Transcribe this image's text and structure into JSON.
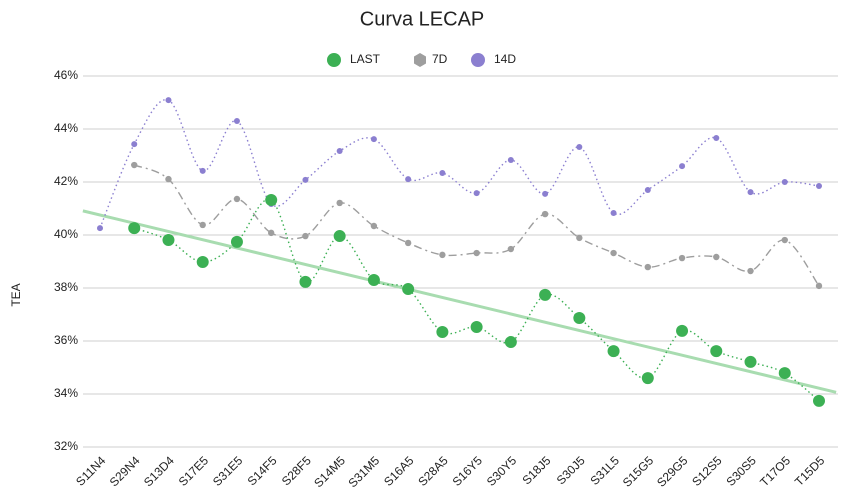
{
  "chart_data": {
    "type": "line",
    "title": "Curva LECAP",
    "ylabel": "TEA",
    "categories": [
      "S11N4",
      "S29N4",
      "S13D4",
      "S17E5",
      "S31E5",
      "S14F5",
      "S28F5",
      "S14M5",
      "S31M5",
      "S16A5",
      "S28A5",
      "S16Y5",
      "S30Y5",
      "S18J5",
      "S30J5",
      "S31L5",
      "S15G5",
      "S29G5",
      "S12S5",
      "S30S5",
      "T17O5",
      "T15D5"
    ],
    "series": [
      {
        "name": "LAST",
        "color": "#3cb054",
        "values": [
          null,
          40.26,
          39.81,
          38.98,
          39.74,
          41.32,
          38.23,
          39.96,
          38.3,
          37.96,
          36.34,
          36.53,
          35.96,
          37.74,
          36.87,
          35.62,
          34.6,
          36.38,
          35.62,
          35.21,
          34.79,
          33.74
        ]
      },
      {
        "name": "7D",
        "color": "#9e9e9e",
        "values": [
          null,
          42.64,
          42.11,
          40.38,
          41.36,
          40.08,
          39.96,
          41.21,
          40.34,
          39.7,
          39.25,
          39.32,
          39.47,
          40.79,
          39.89,
          39.32,
          38.79,
          39.13,
          39.17,
          38.64,
          39.81,
          38.08
        ]
      },
      {
        "name": "14D",
        "color": "#8b7fd0",
        "values": [
          40.26,
          43.43,
          45.09,
          42.42,
          44.3,
          41.17,
          42.08,
          43.17,
          43.62,
          42.11,
          42.34,
          41.58,
          42.83,
          41.55,
          43.32,
          40.83,
          41.7,
          42.6,
          43.66,
          41.62,
          42.0,
          41.85
        ]
      }
    ],
    "ylim": [
      32,
      46
    ],
    "yticks": [
      {
        "value": 32,
        "label": "32%"
      },
      {
        "value": 34,
        "label": "34%"
      },
      {
        "value": 36,
        "label": "36%"
      },
      {
        "value": 38,
        "label": "38%"
      },
      {
        "value": 40,
        "label": "40%"
      },
      {
        "value": 42,
        "label": "42%"
      },
      {
        "value": 44,
        "label": "44%"
      },
      {
        "value": 46,
        "label": "46%"
      }
    ],
    "grid": true
  }
}
